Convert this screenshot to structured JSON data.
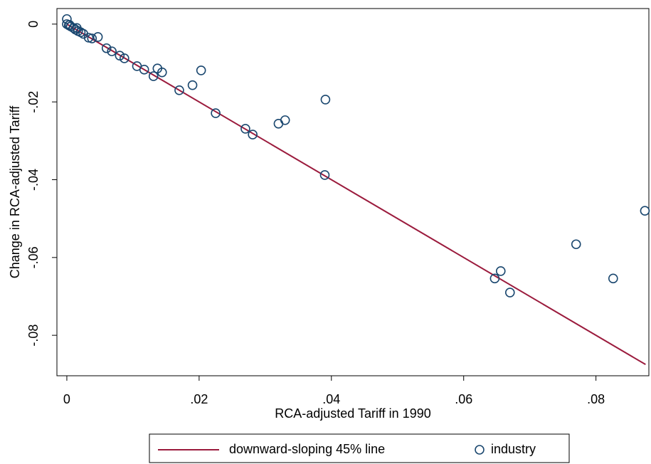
{
  "chart_data": {
    "type": "scatter",
    "xlabel": "RCA-adjusted Tariff in 1990",
    "ylabel": "Change in RCA-adjusted Tariff",
    "xlim": [
      -0.0015,
      0.088
    ],
    "ylim": [
      -0.0904,
      0.004
    ],
    "xticks": [
      0,
      {
        "value": 0.02,
        "label": ".02"
      },
      {
        "value": 0.04,
        "label": ".04"
      },
      {
        "value": 0.06,
        "label": ".06"
      },
      {
        "value": 0.08,
        "label": ".08"
      }
    ],
    "yticks": [
      0,
      {
        "value": -0.02,
        "label": "-.02"
      },
      {
        "value": -0.04,
        "label": "-.04"
      },
      {
        "value": -0.06,
        "label": "-.06"
      },
      {
        "value": -0.08,
        "label": "-.08"
      }
    ],
    "legend": "bottom",
    "series": [
      {
        "name": "downward-sloping 45% line",
        "color": "#9b1b3d",
        "type": "line",
        "x": [
          0,
          0.0875
        ],
        "values": [
          0,
          -0.0875
        ]
      },
      {
        "name": "industry",
        "color": "#1a476f",
        "type": "scatter",
        "x": [
          0,
          0,
          0.0003,
          0.0004,
          0.0006,
          0.001,
          0.0013,
          0.0015,
          0.0017,
          0.0021,
          0.0025,
          0.0033,
          0.0038,
          0.0047,
          0.006,
          0.0068,
          0.008,
          0.0087,
          0.0106,
          0.0117,
          0.0131,
          0.0137,
          0.0144,
          0.017,
          0.019,
          0.0203,
          0.0225,
          0.027,
          0.0281,
          0.032,
          0.033,
          0.0391,
          0.039,
          0.0647,
          0.0656,
          0.067,
          0.077,
          0.0826,
          0.0874
        ],
        "values": [
          0.0013,
          0,
          -0.0003,
          -0.0002,
          -0.0006,
          -0.001,
          -0.0014,
          -0.001,
          -0.0018,
          -0.0021,
          -0.0025,
          -0.0035,
          -0.0037,
          -0.0033,
          -0.0062,
          -0.007,
          -0.0081,
          -0.0088,
          -0.0108,
          -0.0117,
          -0.0134,
          -0.0114,
          -0.0124,
          -0.017,
          -0.0157,
          -0.0119,
          -0.0229,
          -0.0269,
          -0.0284,
          -0.0256,
          -0.0247,
          -0.0194,
          -0.0388,
          -0.0654,
          -0.0635,
          -0.069,
          -0.0566,
          -0.0654,
          -0.048
        ]
      }
    ]
  }
}
